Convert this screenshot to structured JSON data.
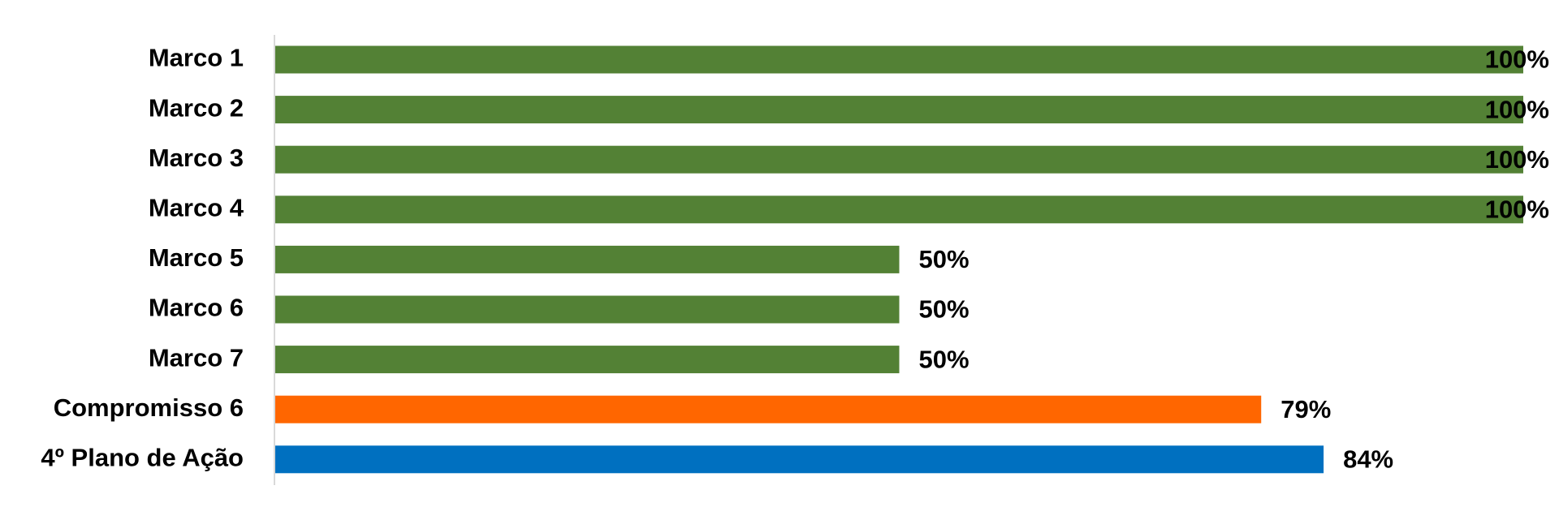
{
  "chart_data": {
    "type": "hbar",
    "categories": [
      "Marco 1",
      "Marco 2",
      "Marco 3",
      "Marco 4",
      "Marco 5",
      "Marco 6",
      "Marco 7",
      "Compromisso 6",
      "4º Plano de Ação"
    ],
    "values": [
      100,
      100,
      100,
      100,
      50,
      50,
      50,
      79,
      84
    ],
    "value_labels": [
      "100%",
      "100%",
      "100%",
      "100%",
      "50%",
      "50%",
      "50%",
      "79%",
      "84%"
    ],
    "colors": [
      "#538135",
      "#538135",
      "#538135",
      "#538135",
      "#538135",
      "#538135",
      "#538135",
      "#ff6600",
      "#0070c0"
    ],
    "xlim": [
      0,
      100
    ]
  }
}
